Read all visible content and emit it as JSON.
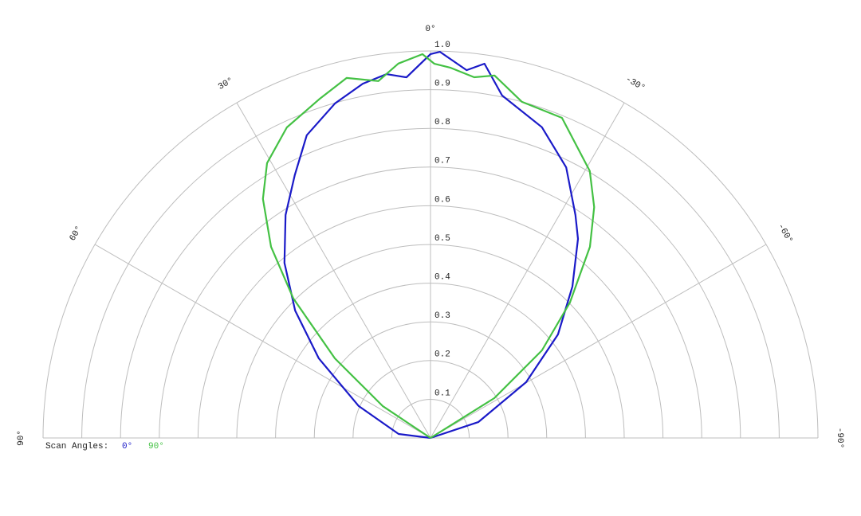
{
  "chart_data": {
    "type": "polar",
    "legend_title": "Scan Angles:",
    "rlim": [
      0,
      1
    ],
    "rticks": [
      0.1,
      0.2,
      0.3,
      0.4,
      0.5,
      0.6,
      0.7,
      0.8,
      0.9,
      {
        "value": 1,
        "label": "1.0"
      }
    ],
    "thetalim": [
      90,
      -90
    ],
    "thetaticks": [
      {
        "value": 90,
        "label": "90°"
      },
      {
        "value": 60,
        "label": "60°"
      },
      {
        "value": 30,
        "label": "30°"
      },
      {
        "value": 0,
        "label": "0°"
      },
      {
        "value": -30,
        "label": "-30°"
      },
      {
        "value": -60,
        "label": "-60°"
      },
      {
        "value": -90,
        "label": "-90°"
      }
    ],
    "grid": true,
    "series": [
      {
        "name": "0°",
        "color": "#1a1ac8",
        "theta": [
          90,
          82.9,
          66,
          54.5,
          46.7,
          39.8,
          33,
          27.3,
          22.2,
          15.9,
          10.8,
          6.9,
          3.8,
          0,
          -1.4,
          -5.6,
          -8.2,
          -11.8,
          -19.7,
          -26.6,
          -33,
          -36.5,
          -43.1,
          -50.9,
          -59.7,
          -71.6,
          -90
        ],
        "values": [
          0,
          0.083,
          0.203,
          0.354,
          0.48,
          0.589,
          0.687,
          0.764,
          0.845,
          0.899,
          0.932,
          0.947,
          0.934,
          0.992,
          0.998,
          0.955,
          0.977,
          0.904,
          0.853,
          0.782,
          0.687,
          0.64,
          0.536,
          0.424,
          0.286,
          0.13,
          0
        ]
      },
      {
        "name": "90°",
        "color": "#44c144",
        "theta": [
          90,
          56.3,
          50.2,
          44.5,
          39.8,
          35,
          30.7,
          24.8,
          18.2,
          13.1,
          8.3,
          4.9,
          1.2,
          -0.6,
          -3.1,
          -6.9,
          -10,
          -15.2,
          -22.3,
          -30.8,
          -35.3,
          -39.8,
          -45.8,
          -51.8,
          -58,
          -90
        ],
        "values": [
          0,
          0.148,
          0.321,
          0.505,
          0.643,
          0.754,
          0.826,
          0.884,
          0.921,
          0.955,
          0.932,
          0.971,
          0.992,
          0.967,
          0.958,
          0.939,
          0.951,
          0.9,
          0.894,
          0.803,
          0.731,
          0.643,
          0.502,
          0.366,
          0.194,
          0
        ]
      }
    ]
  }
}
